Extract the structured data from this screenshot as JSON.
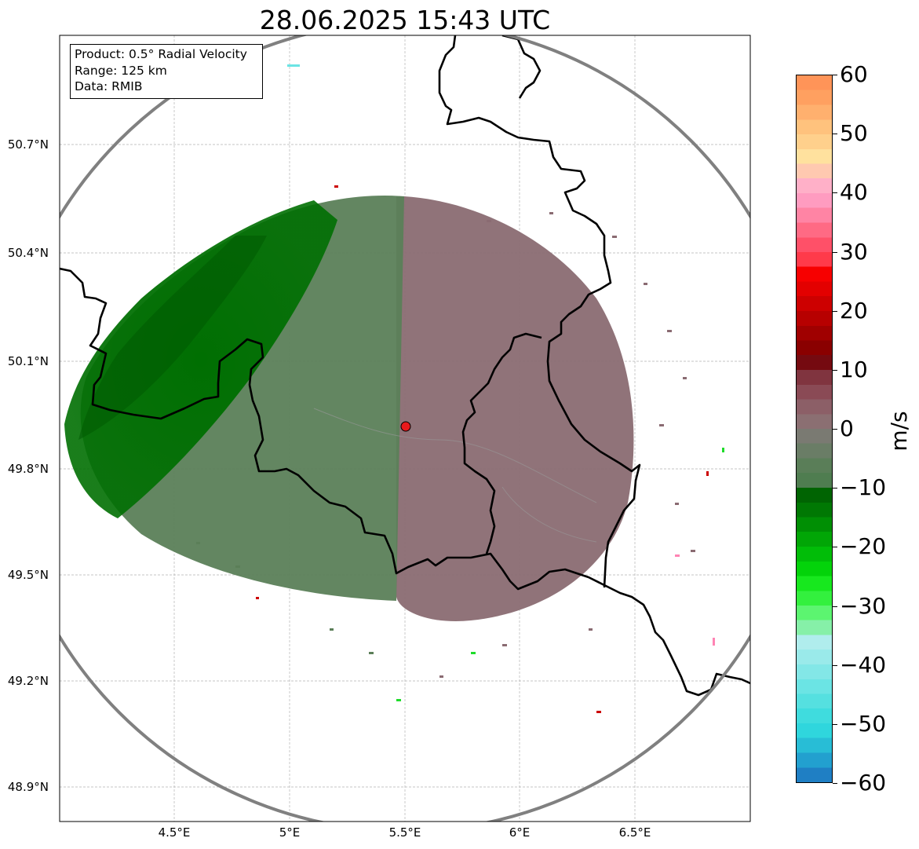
{
  "title": "28.06.2025 15:43 UTC",
  "info": {
    "product": "Product: 0.5° Radial Velocity",
    "range": "Range: 125 km",
    "data": "Data: RMIB"
  },
  "map": {
    "lat_ticks": [
      "50.7°N",
      "50.4°N",
      "50.1°N",
      "49.8°N",
      "49.5°N",
      "49.2°N",
      "48.9°N"
    ],
    "lon_ticks": [
      "4.5°E",
      "5°E",
      "5.5°E",
      "6°E",
      "6.5°E"
    ],
    "radar_site": {
      "lon": 5.5,
      "lat": 49.914,
      "color": "#e8191c"
    },
    "range_ring_color": "#808080",
    "border_color": "#000000"
  },
  "colorbar": {
    "ticks": [
      "60",
      "50",
      "40",
      "30",
      "20",
      "10",
      "0",
      "−10",
      "−20",
      "−30",
      "−40",
      "−50",
      "−60"
    ],
    "unit": "m/s",
    "vmin": -60,
    "vmax": 60,
    "colors": [
      "#1f7fc4",
      "#22a0cf",
      "#28bdd6",
      "#2fd6dd",
      "#3fdcde",
      "#55e0e0",
      "#6be4e4",
      "#83e7e7",
      "#9aeaea",
      "#b0eded",
      "#86f0a8",
      "#5cf570",
      "#33f03e",
      "#17e81e",
      "#03d30a",
      "#01bd08",
      "#01a606",
      "#008f04",
      "#007803",
      "#006402",
      "#4f7d50",
      "#5a7e58",
      "#6a7d66",
      "#7a7a72",
      "#8b6f72",
      "#8c5f67",
      "#8a4a55",
      "#80343f",
      "#750a10",
      "#8a0000",
      "#a00000",
      "#b70000",
      "#cd0000",
      "#e30000",
      "#f70000",
      "#ff3a4a",
      "#ff5068",
      "#ff6a84",
      "#ff84a4",
      "#ff9cc0",
      "#ffb0c8",
      "#ffc9b0",
      "#ffe19e",
      "#ffd08c",
      "#ffc27d",
      "#ffb06e",
      "#ffa060",
      "#ff9458"
    ]
  },
  "velocity_legend_groups": {
    "approaching_strong": "#007a03",
    "approaching_weak": "#5b7f58",
    "receding_weak": "#8a6a70",
    "receding_strong": "#b00000"
  }
}
